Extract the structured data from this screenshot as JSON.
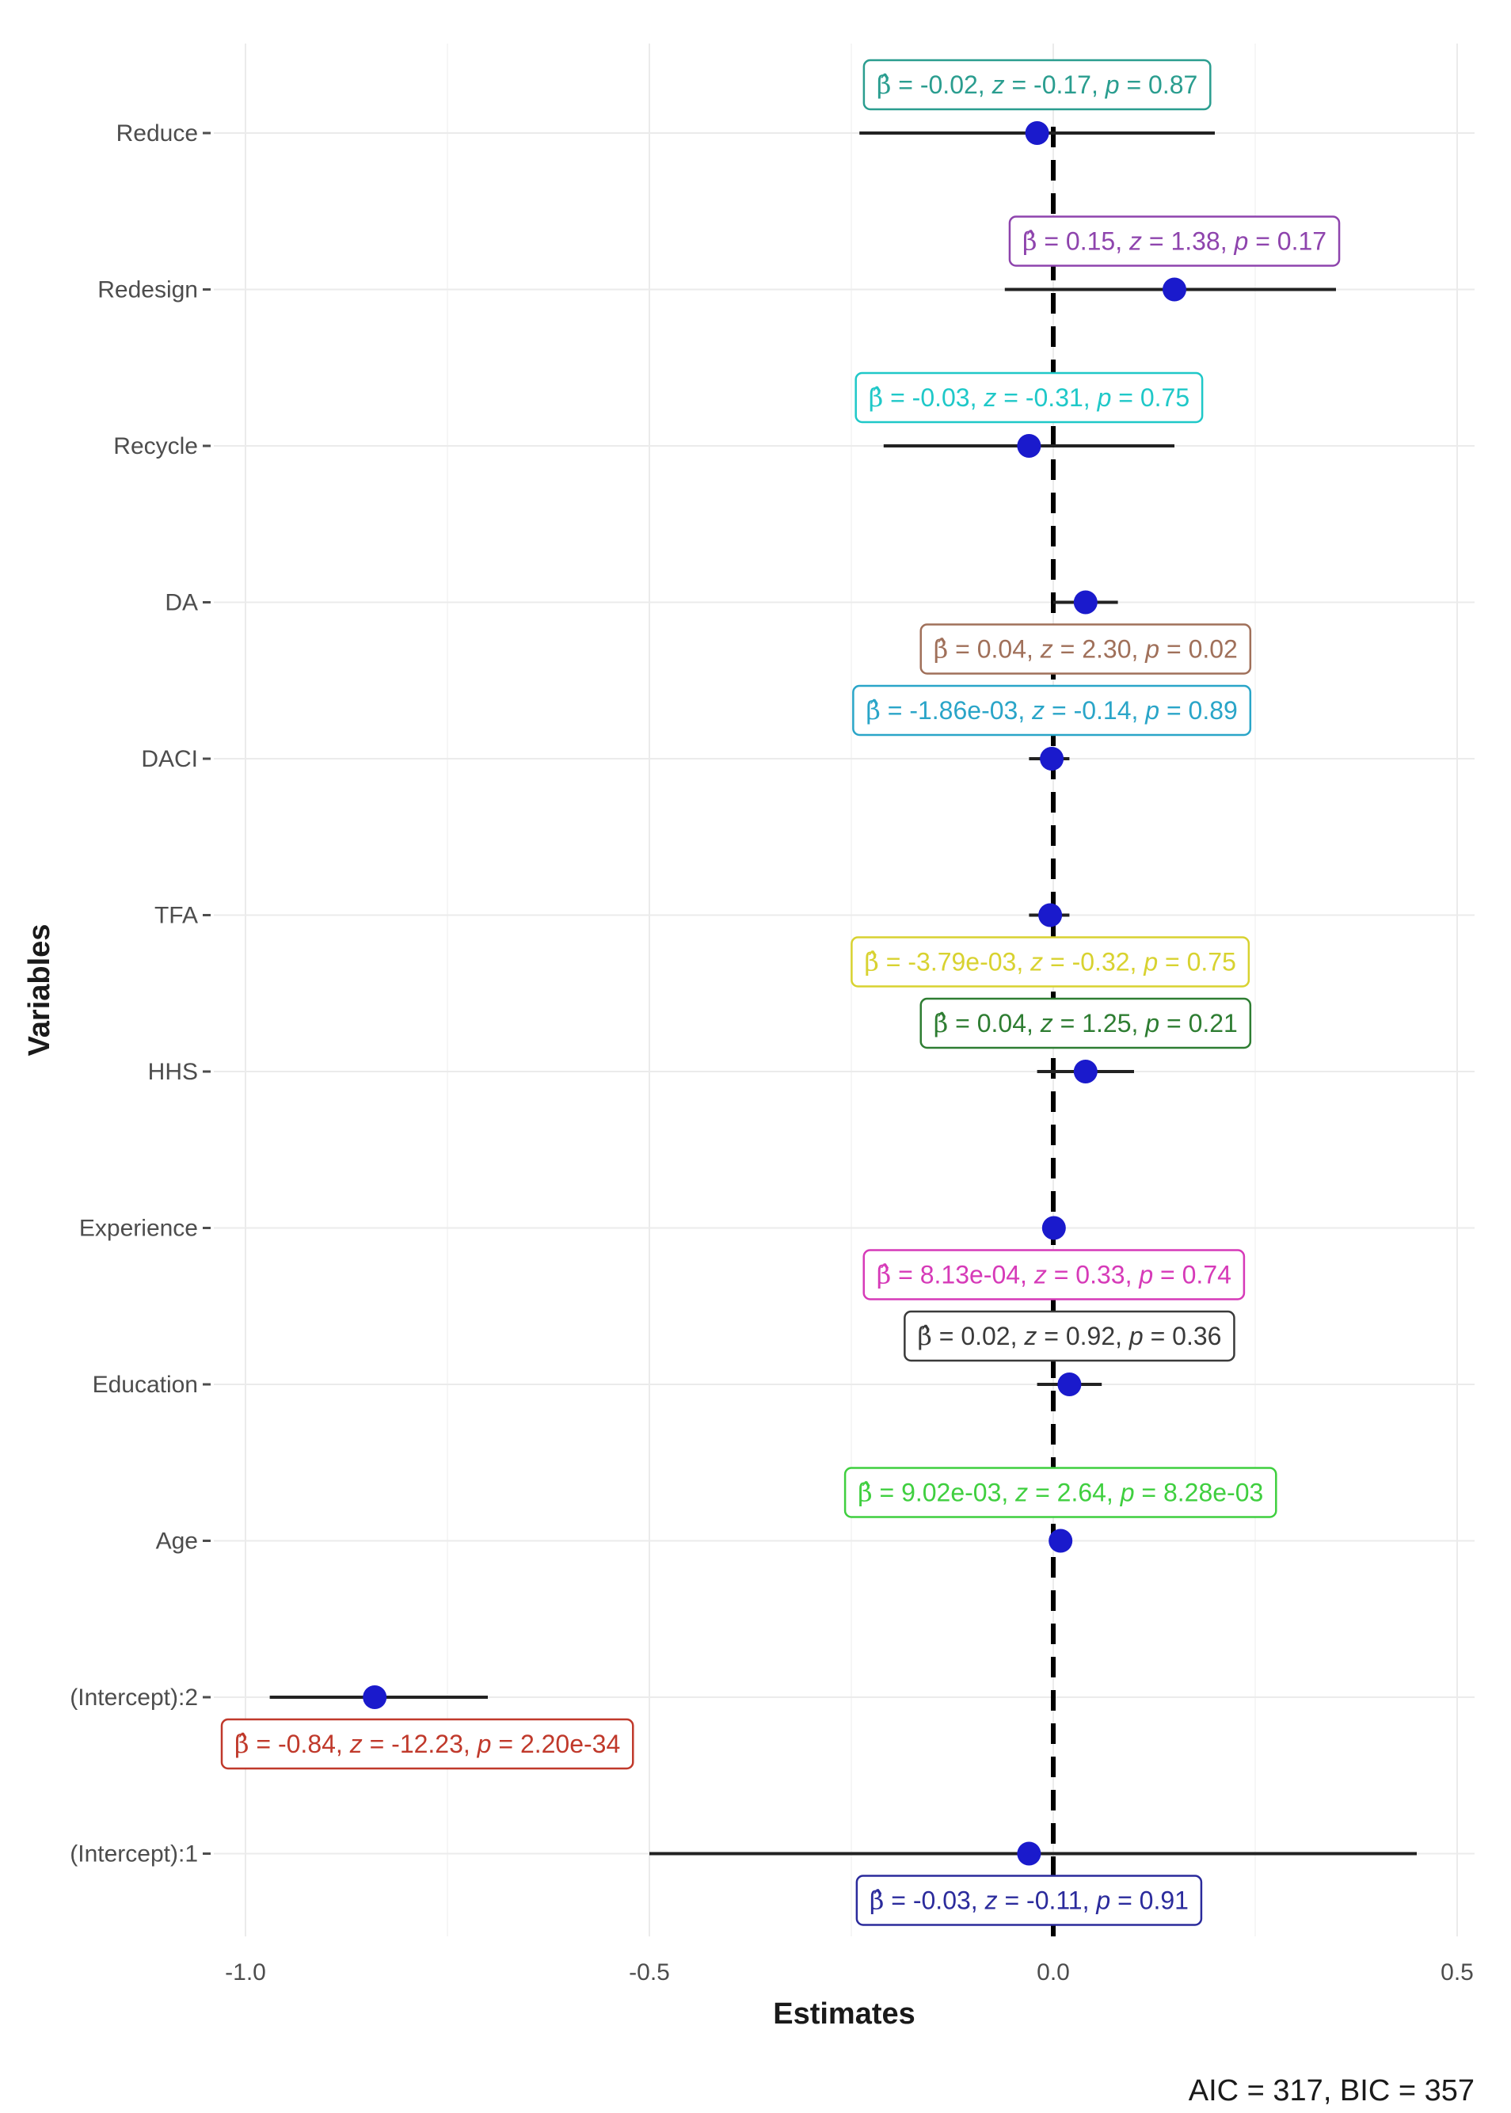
{
  "chart_data": {
    "type": "forest",
    "xlabel": "Estimates",
    "ylabel": "Variables",
    "xlim": [
      -1.0,
      0.5
    ],
    "xticks": [
      -1.0,
      -0.5,
      0.0,
      0.5
    ],
    "xtick_labels": [
      "-1.0",
      "-0.5",
      "0.0",
      "0.5"
    ],
    "reference_line": 0,
    "point_color": "#1a1acc",
    "caption": "AIC = 317, BIC = 357",
    "rows": [
      {
        "variable": "Reduce",
        "estimate": -0.02,
        "ci": [
          -0.24,
          0.2
        ],
        "beta": "-0.02",
        "z": "-0.17",
        "p": "0.87",
        "color": "#2a9d8f",
        "label_side": "above"
      },
      {
        "variable": "Redesign",
        "estimate": 0.15,
        "ci": [
          -0.06,
          0.35
        ],
        "beta": "0.15",
        "z": "1.38",
        "p": "0.17",
        "color": "#8e44ad",
        "label_side": "above"
      },
      {
        "variable": "Recycle",
        "estimate": -0.03,
        "ci": [
          -0.21,
          0.15
        ],
        "beta": "-0.03",
        "z": "-0.31",
        "p": "0.75",
        "color": "#1fc8c8",
        "label_side": "above"
      },
      {
        "variable": "DA",
        "estimate": 0.04,
        "ci": [
          0.0,
          0.08
        ],
        "beta": "0.04",
        "z": "2.30",
        "p": "0.02",
        "color": "#a0705a",
        "label_side": "below"
      },
      {
        "variable": "DACI",
        "estimate": -0.00186,
        "ci": [
          -0.03,
          0.02
        ],
        "beta": "-1.86e-03",
        "z": "-0.14",
        "p": "0.89",
        "color": "#2aa5c8",
        "label_side": "above"
      },
      {
        "variable": "TFA",
        "estimate": -0.00379,
        "ci": [
          -0.03,
          0.02
        ],
        "beta": "-3.79e-03",
        "z": "-0.32",
        "p": "0.75",
        "color": "#d8d230",
        "label_side": "below"
      },
      {
        "variable": "HHS",
        "estimate": 0.04,
        "ci": [
          -0.02,
          0.1
        ],
        "beta": "0.04",
        "z": "1.25",
        "p": "0.21",
        "color": "#2e7d32",
        "label_side": "above"
      },
      {
        "variable": "Experience",
        "estimate": 0.000813,
        "ci": [
          -0.005,
          0.007
        ],
        "beta": "8.13e-04",
        "z": "0.33",
        "p": "0.74",
        "color": "#d63ab8",
        "label_side": "below"
      },
      {
        "variable": "Education",
        "estimate": 0.02,
        "ci": [
          -0.02,
          0.06
        ],
        "beta": "0.02",
        "z": "0.92",
        "p": "0.36",
        "color": "#3a3a3a",
        "label_side": "above"
      },
      {
        "variable": "Age",
        "estimate": 0.00902,
        "ci": [
          0.003,
          0.015
        ],
        "beta": "9.02e-03",
        "z": "2.64",
        "p": "8.28e-03",
        "color": "#3fcf3f",
        "label_side": "above"
      },
      {
        "variable": "(Intercept):2",
        "estimate": -0.84,
        "ci": [
          -0.97,
          -0.7
        ],
        "beta": "-0.84",
        "z": "-12.23",
        "p": "2.20e-34",
        "color": "#c0392b",
        "label_side": "below"
      },
      {
        "variable": "(Intercept):1",
        "estimate": -0.03,
        "ci": [
          -0.5,
          0.45
        ],
        "beta": "-0.03",
        "z": "-0.11",
        "p": "0.91",
        "color": "#2b2b9c",
        "label_side": "below"
      }
    ]
  }
}
